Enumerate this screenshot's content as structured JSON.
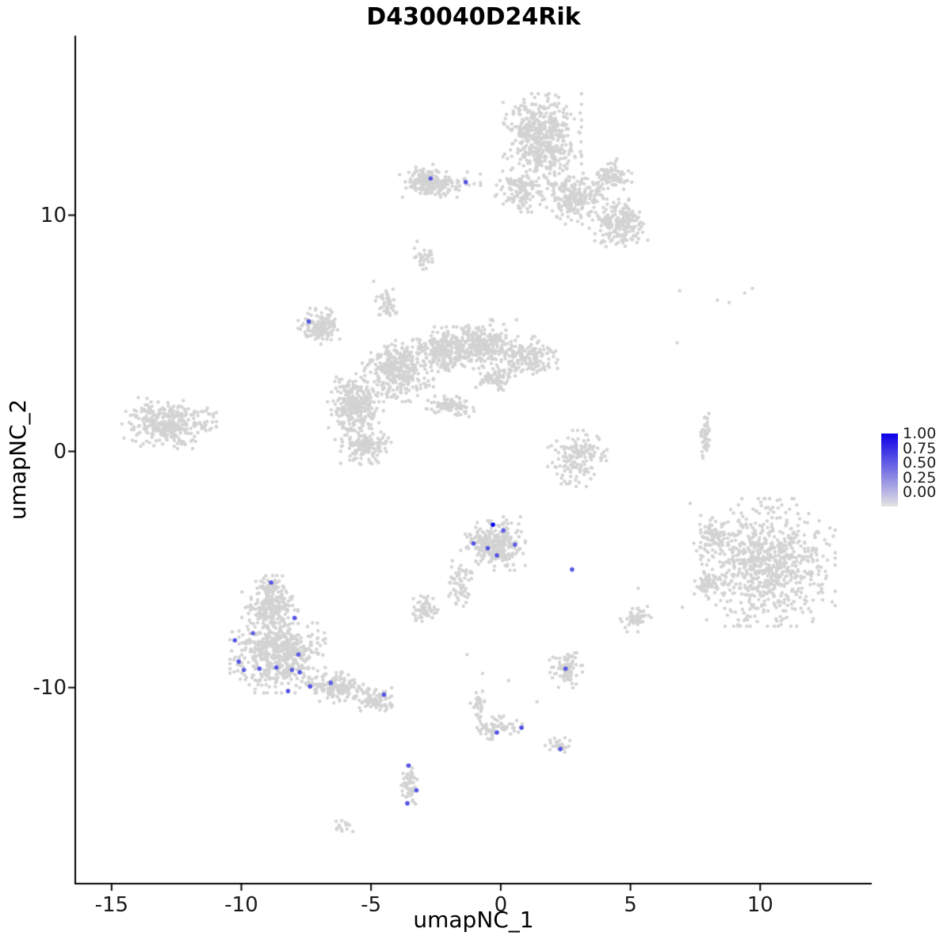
{
  "title": "D430040D24Rik",
  "axes": {
    "x_label": "umapNC_1",
    "y_label": "umapNC_2"
  },
  "legend": {
    "labels": [
      "1.00",
      "0.75",
      "0.50",
      "0.25",
      "0.00"
    ],
    "high_color": "#0b00e6",
    "low_color": "#e3e3e3"
  },
  "chart_data": {
    "type": "scatter",
    "title": "D430040D24Rik",
    "xlabel": "umapNC_1",
    "ylabel": "umapNC_2",
    "xlim": [
      -16.4,
      14.3
    ],
    "ylim": [
      -18.3,
      17.6
    ],
    "x_ticks": [
      -15,
      -10,
      -5,
      0,
      5,
      10
    ],
    "y_ticks": [
      10,
      0,
      -10
    ],
    "grid": false,
    "legend_position": "right",
    "background_point_color": "#d3d3d3",
    "highlight_low_color": "#d3d3d3",
    "highlight_high_color": "#0000ee",
    "point_radius_px": 2.2,
    "seed": 1337,
    "cluster_format": [
      "cx",
      "cy",
      "rx",
      "ry",
      "n"
    ],
    "gray_clusters": [
      [
        1.6,
        13.2,
        1.4,
        1.8,
        520
      ],
      [
        2.9,
        10.7,
        1.2,
        1.0,
        220
      ],
      [
        4.6,
        9.6,
        1.1,
        1.0,
        200
      ],
      [
        0.8,
        11.0,
        1.0,
        0.8,
        130
      ],
      [
        4.3,
        11.7,
        0.8,
        0.7,
        80
      ],
      [
        -2.4,
        11.3,
        1.5,
        0.5,
        140
      ],
      [
        -2.95,
        11.5,
        0.55,
        0.6,
        90
      ],
      [
        -3.0,
        8.3,
        0.4,
        0.55,
        28
      ],
      [
        -4.0,
        3.4,
        1.3,
        1.2,
        360
      ],
      [
        -2.2,
        4.3,
        1.3,
        0.9,
        260
      ],
      [
        -0.6,
        4.6,
        1.2,
        0.9,
        230
      ],
      [
        1.0,
        4.0,
        1.1,
        0.8,
        150
      ],
      [
        -5.6,
        1.9,
        1.0,
        1.3,
        300
      ],
      [
        -5.2,
        0.2,
        0.9,
        0.7,
        160
      ],
      [
        -7.0,
        5.3,
        0.75,
        0.7,
        140
      ],
      [
        -4.4,
        6.3,
        0.4,
        0.7,
        45
      ],
      [
        -1.9,
        1.9,
        0.9,
        0.4,
        90
      ],
      [
        -0.2,
        3.1,
        0.7,
        0.5,
        70
      ],
      [
        -12.8,
        1.2,
        1.7,
        1.0,
        340
      ],
      [
        3.0,
        -0.3,
        1.1,
        1.1,
        160
      ],
      [
        7.9,
        0.8,
        0.18,
        1.0,
        45
      ],
      [
        -0.3,
        -3.9,
        1.15,
        1.05,
        280
      ],
      [
        -1.55,
        -5.6,
        0.45,
        0.9,
        60
      ],
      [
        10.3,
        -4.7,
        2.4,
        2.5,
        750
      ],
      [
        8.2,
        -3.6,
        0.7,
        0.7,
        80
      ],
      [
        8.0,
        -5.6,
        0.5,
        0.6,
        60
      ],
      [
        -8.6,
        -8.6,
        1.7,
        1.5,
        560
      ],
      [
        -8.9,
        -6.7,
        1.0,
        0.9,
        200
      ],
      [
        -6.3,
        -10.0,
        1.1,
        0.6,
        150
      ],
      [
        -4.8,
        -10.5,
        0.7,
        0.45,
        80
      ],
      [
        -8.9,
        -5.8,
        0.5,
        0.5,
        55
      ],
      [
        -2.9,
        -6.7,
        0.6,
        0.55,
        65
      ],
      [
        5.2,
        -7.1,
        0.55,
        0.5,
        55
      ],
      [
        2.5,
        -9.2,
        0.6,
        0.75,
        90
      ],
      [
        -0.2,
        -11.7,
        0.95,
        0.45,
        70
      ],
      [
        -0.85,
        -10.7,
        0.3,
        0.55,
        30
      ],
      [
        2.2,
        -12.5,
        0.45,
        0.35,
        28
      ],
      [
        -3.5,
        -14.2,
        0.35,
        1.0,
        55
      ],
      [
        -6.1,
        -15.9,
        0.45,
        0.3,
        16
      ]
    ],
    "sparse_gray_points": [
      [
        6.9,
        6.8
      ],
      [
        8.35,
        6.4
      ],
      [
        9.4,
        6.7
      ],
      [
        9.7,
        6.9
      ],
      [
        8.8,
        6.3
      ],
      [
        6.8,
        4.6
      ],
      [
        7.3,
        -2.2
      ],
      [
        7.0,
        -6.6
      ],
      [
        0.3,
        -9.7
      ],
      [
        -0.7,
        -9.4
      ],
      [
        -4.9,
        7.2
      ],
      [
        5.3,
        -5.8
      ],
      [
        -1.3,
        -8.6
      ],
      [
        1.4,
        -10.6
      ]
    ],
    "highlighted_point_format": [
      "x",
      "y",
      "value"
    ],
    "highlighted_points": [
      [
        -2.7,
        11.55,
        0.6
      ],
      [
        -1.35,
        11.4,
        0.6
      ],
      [
        -7.4,
        5.5,
        0.6
      ],
      [
        -0.3,
        -3.1,
        1.0
      ],
      [
        0.1,
        -3.35,
        0.55
      ],
      [
        -1.05,
        -3.9,
        0.6
      ],
      [
        -0.5,
        -4.1,
        0.6
      ],
      [
        -0.15,
        -4.4,
        0.6
      ],
      [
        0.55,
        -3.95,
        0.55
      ],
      [
        2.75,
        -5.0,
        0.6
      ],
      [
        -8.85,
        -5.55,
        0.6
      ],
      [
        -7.95,
        -7.05,
        0.6
      ],
      [
        -9.55,
        -7.7,
        0.55
      ],
      [
        -10.25,
        -8.0,
        0.6
      ],
      [
        -10.1,
        -8.9,
        0.6
      ],
      [
        -9.9,
        -9.25,
        0.55
      ],
      [
        -9.3,
        -9.2,
        0.6
      ],
      [
        -8.65,
        -9.15,
        0.6
      ],
      [
        -8.05,
        -9.25,
        0.55
      ],
      [
        -7.75,
        -9.35,
        0.6
      ],
      [
        -7.8,
        -8.6,
        0.55
      ],
      [
        -8.2,
        -10.15,
        0.6
      ],
      [
        -7.35,
        -9.95,
        0.6
      ],
      [
        -6.55,
        -9.8,
        0.55
      ],
      [
        -4.5,
        -10.3,
        0.6
      ],
      [
        2.5,
        -9.2,
        0.6
      ],
      [
        -0.15,
        -11.9,
        0.6
      ],
      [
        0.8,
        -11.7,
        0.6
      ],
      [
        2.3,
        -12.6,
        0.6
      ],
      [
        -3.55,
        -13.3,
        0.6
      ],
      [
        -3.25,
        -14.35,
        0.6
      ],
      [
        -3.6,
        -14.9,
        0.6
      ]
    ]
  }
}
